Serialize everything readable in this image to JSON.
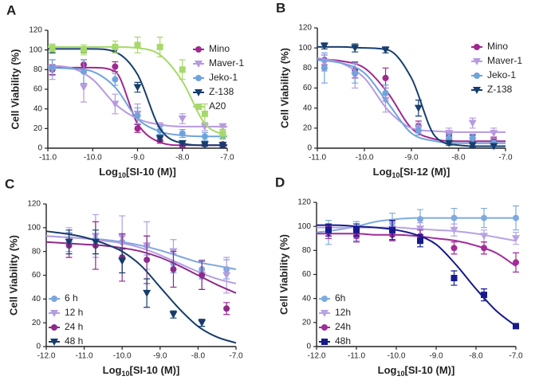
{
  "chart_data": [
    {
      "type": "scatter",
      "panel_label": "A",
      "x_label": [
        "Log",
        "10",
        "[SI-10 (M)]"
      ],
      "y_label": "Cell Viability (%)",
      "xlim": [
        -11,
        -7
      ],
      "ylim": [
        0,
        120
      ],
      "legend": "upper right",
      "xticks": [
        {
          "value": -11,
          "label": "-11.0"
        },
        {
          "value": -10,
          "label": "-10.0"
        },
        {
          "value": -9,
          "label": "-9.0"
        },
        {
          "value": -8,
          "label": "-8.0"
        },
        {
          "value": -7,
          "label": "-7.0"
        }
      ],
      "yticks": [
        0,
        20,
        40,
        60,
        80,
        100,
        120
      ],
      "x": [
        -10.9,
        -10.2,
        -9.5,
        -9.0,
        -8.5,
        -8.0,
        -7.5,
        -7.1
      ],
      "fit_x": [
        -11,
        -10.5,
        -10,
        -9.5,
        -9,
        -8.5,
        -8,
        -7.5,
        -7
      ],
      "series": [
        {
          "name": "Mino",
          "color": "#a0288f",
          "marker": "circle",
          "values": [
            80,
            85,
            83,
            20,
            8,
            3,
            4,
            4
          ],
          "errors": [
            5,
            5,
            5,
            4,
            3,
            2,
            2,
            2
          ],
          "fit": [
            82,
            82,
            82,
            78,
            25,
            6,
            3,
            3,
            3
          ]
        },
        {
          "name": "Maver-1",
          "color": "#b69ae0",
          "marker": "triangle-down",
          "values": [
            80,
            62,
            45,
            35,
            22,
            30,
            22,
            22
          ],
          "errors": [
            10,
            15,
            10,
            10,
            4,
            5,
            4,
            3
          ],
          "fit": [
            84,
            82,
            70,
            45,
            30,
            24,
            22,
            22,
            22
          ]
        },
        {
          "name": "Jeko-1",
          "color": "#6fa3dc",
          "marker": "circle",
          "values": [
            82,
            78,
            70,
            33,
            18,
            15,
            12,
            13
          ],
          "errors": [
            8,
            12,
            6,
            8,
            4,
            4,
            4,
            3
          ],
          "fit": [
            82,
            81,
            78,
            62,
            30,
            17,
            13,
            12,
            12
          ]
        },
        {
          "name": "Z-138",
          "color": "#163e6e",
          "marker": "triangle-down",
          "values": [
            100,
            100,
            100,
            62,
            10,
            5,
            4,
            3
          ],
          "errors": [
            3,
            3,
            3,
            5,
            3,
            2,
            2,
            2
          ],
          "fit": [
            101,
            101,
            101,
            98,
            75,
            20,
            5,
            3,
            3
          ]
        },
        {
          "name": "A20",
          "color": "#a6d96a",
          "marker": "square",
          "values": [
            102,
            100,
            103,
            105,
            103,
            80,
            35,
            15
          ],
          "errors": [
            4,
            5,
            6,
            8,
            10,
            10,
            10,
            6
          ],
          "fit": [
            103,
            103,
            103,
            103,
            102,
            95,
            68,
            25,
            12
          ]
        }
      ]
    },
    {
      "type": "scatter",
      "panel_label": "B",
      "x_label": [
        "Log",
        "10",
        "[SI-12 (M)]"
      ],
      "y_label": "Cell Viability (%)",
      "xlim": [
        -11,
        -7
      ],
      "ylim": [
        0,
        120
      ],
      "legend": "upper right",
      "xticks": [
        {
          "value": -11,
          "label": "-11.0"
        },
        {
          "value": -10,
          "label": "-10.0"
        },
        {
          "value": -9,
          "label": "-9.0"
        },
        {
          "value": -8,
          "label": "-8.0"
        },
        {
          "value": -7,
          "label": "-7.0"
        }
      ],
      "yticks": [
        0,
        20,
        40,
        60,
        80,
        100,
        120
      ],
      "x": [
        -10.85,
        -10.2,
        -9.55,
        -8.85,
        -8.2,
        -7.7,
        -7.25
      ],
      "fit_x": [
        -11,
        -10.5,
        -10,
        -9.5,
        -9,
        -8.5,
        -8,
        -7.5,
        -7
      ],
      "series": [
        {
          "name": "Mino",
          "color": "#a0288f",
          "marker": "circle",
          "values": [
            88,
            78,
            70,
            22,
            12,
            10,
            8
          ],
          "errors": [
            5,
            8,
            10,
            5,
            3,
            3,
            3
          ],
          "fit": [
            89,
            87,
            80,
            55,
            20,
            9,
            7,
            7,
            7
          ]
        },
        {
          "name": "Maver-1",
          "color": "#b69ae0",
          "marker": "triangle-down",
          "values": [
            85,
            72,
            48,
            20,
            15,
            25,
            15
          ],
          "errors": [
            8,
            12,
            12,
            5,
            5,
            5,
            5
          ],
          "fit": [
            90,
            85,
            70,
            38,
            20,
            17,
            16,
            16,
            16
          ]
        },
        {
          "name": "Jeko-1",
          "color": "#6fa3dc",
          "marker": "circle",
          "values": [
            80,
            75,
            55,
            18,
            10,
            10,
            5
          ],
          "errors": [
            15,
            10,
            8,
            5,
            4,
            4,
            3
          ],
          "fit": [
            88,
            85,
            75,
            45,
            15,
            7,
            5,
            5,
            5
          ]
        },
        {
          "name": "Z-138",
          "color": "#163e6e",
          "marker": "triangle-down",
          "values": [
            102,
            100,
            98,
            40,
            5,
            3,
            2
          ],
          "errors": [
            3,
            4,
            3,
            8,
            2,
            2,
            2
          ],
          "fit": [
            101,
            101,
            100,
            98,
            70,
            12,
            3,
            2,
            2
          ]
        }
      ]
    },
    {
      "type": "scatter",
      "panel_label": "C",
      "x_label": [
        "Log",
        "10",
        "[SI-10 (M)]"
      ],
      "y_label": "Cell Viability (%)",
      "xlim": [
        -12,
        -7
      ],
      "ylim": [
        0,
        120
      ],
      "legend": "lower left",
      "xticks": [
        {
          "value": -12,
          "label": "-12.0"
        },
        {
          "value": -11,
          "label": "-11.0"
        },
        {
          "value": -10,
          "label": "-10.0"
        },
        {
          "value": -9,
          "label": "-9.0"
        },
        {
          "value": -8,
          "label": "-8.0"
        },
        {
          "value": -7,
          "label": "-7.0"
        }
      ],
      "yticks": [
        0,
        20,
        40,
        60,
        80,
        100,
        120
      ],
      "x": [
        -11.4,
        -10.7,
        -10.0,
        -9.35,
        -8.65,
        -7.9,
        -7.25
      ],
      "fit_x": [
        -12,
        -11.5,
        -11,
        -10.5,
        -10,
        -9.5,
        -9,
        -8.5,
        -8,
        -7.5,
        -7
      ],
      "series": [
        {
          "name": "6 h",
          "color": "#7ea6dd",
          "marker": "circle",
          "values": [
            88,
            90,
            88,
            85,
            70,
            65,
            65
          ],
          "errors": [
            8,
            5,
            5,
            8,
            8,
            8,
            8
          ],
          "fit": [
            93,
            92,
            91,
            90,
            88,
            85,
            81,
            76,
            71,
            68,
            65
          ]
        },
        {
          "name": "12 h",
          "color": "#b49de0",
          "marker": "triangle-down",
          "values": [
            90,
            93,
            92,
            85,
            80,
            60,
            60
          ],
          "errors": [
            10,
            18,
            18,
            20,
            10,
            12,
            15
          ],
          "fit": [
            93,
            92,
            91,
            89,
            87,
            83,
            77,
            70,
            63,
            57,
            53
          ]
        },
        {
          "name": "24 h",
          "color": "#8e2a8c",
          "marker": "circle",
          "values": [
            85,
            85,
            75,
            73,
            65,
            60,
            32
          ],
          "errors": [
            10,
            20,
            20,
            20,
            15,
            12,
            5
          ],
          "fit": [
            88,
            87,
            86,
            85,
            83,
            80,
            75,
            68,
            60,
            52,
            45
          ]
        },
        {
          "name": "48 h",
          "color": "#163b6b",
          "marker": "triangle-down",
          "values": [
            88,
            88,
            72,
            45,
            27,
            20,
            null
          ],
          "errors": [
            10,
            10,
            10,
            12,
            3,
            3,
            null
          ],
          "fit": [
            97,
            95,
            92,
            87,
            80,
            68,
            50,
            32,
            17,
            8,
            3
          ]
        }
      ]
    },
    {
      "type": "scatter",
      "panel_label": "D",
      "x_label": [
        "Log",
        "10",
        "[SI-10 (M)]"
      ],
      "y_label": "Cell Viability (%)",
      "xlim": [
        -12,
        -7
      ],
      "ylim": [
        0,
        120
      ],
      "legend": "lower left",
      "xticks": [
        {
          "value": -12,
          "label": "-12.0"
        },
        {
          "value": -11,
          "label": "-11.0"
        },
        {
          "value": -10,
          "label": "-10.0"
        },
        {
          "value": -9,
          "label": "-9.0"
        },
        {
          "value": -8,
          "label": "-8.0"
        },
        {
          "value": -7,
          "label": "-7.0"
        }
      ],
      "yticks": [
        0,
        20,
        40,
        60,
        80,
        100,
        120
      ],
      "x": [
        -11.7,
        -11.0,
        -10.1,
        -9.4,
        -8.55,
        -7.8,
        -7.0
      ],
      "fit_x": [
        -12,
        -11.5,
        -11,
        -10.5,
        -10,
        -9.5,
        -9,
        -8.5,
        -8,
        -7.5,
        -7
      ],
      "series": [
        {
          "name": "6h",
          "color": "#7eaadf",
          "marker": "circle",
          "values": [
            95,
            96,
            103,
            106,
            107,
            107,
            107
          ],
          "errors": [
            10,
            8,
            8,
            8,
            8,
            8,
            10
          ],
          "fit": [
            95,
            97,
            100,
            104,
            106,
            107,
            107,
            107,
            107,
            107,
            107
          ]
        },
        {
          "name": "12h",
          "color": "#b7a2e2",
          "marker": "triangle-down",
          "values": [
            97,
            95,
            98,
            98,
            97,
            92,
            90
          ],
          "errors": [
            5,
            5,
            5,
            5,
            5,
            5,
            5
          ],
          "fit": [
            99,
            99,
            99,
            99,
            99,
            98,
            97,
            96,
            94,
            91,
            88
          ]
        },
        {
          "name": "24h",
          "color": "#a22b99",
          "marker": "circle",
          "values": [
            95,
            92,
            93,
            92,
            82,
            82,
            70
          ],
          "errors": [
            5,
            5,
            5,
            5,
            5,
            5,
            8
          ],
          "fit": [
            94,
            94,
            94,
            93,
            93,
            92,
            90,
            88,
            84,
            78,
            67
          ]
        },
        {
          "name": "48h",
          "color": "#161a8c",
          "marker": "square",
          "values": [
            97,
            97,
            97,
            88,
            57,
            43,
            17
          ],
          "errors": [
            5,
            5,
            8,
            5,
            6,
            5,
            2
          ],
          "fit": [
            101,
            101,
            100,
            99,
            97,
            93,
            85,
            68,
            48,
            30,
            17
          ]
        }
      ]
    }
  ]
}
